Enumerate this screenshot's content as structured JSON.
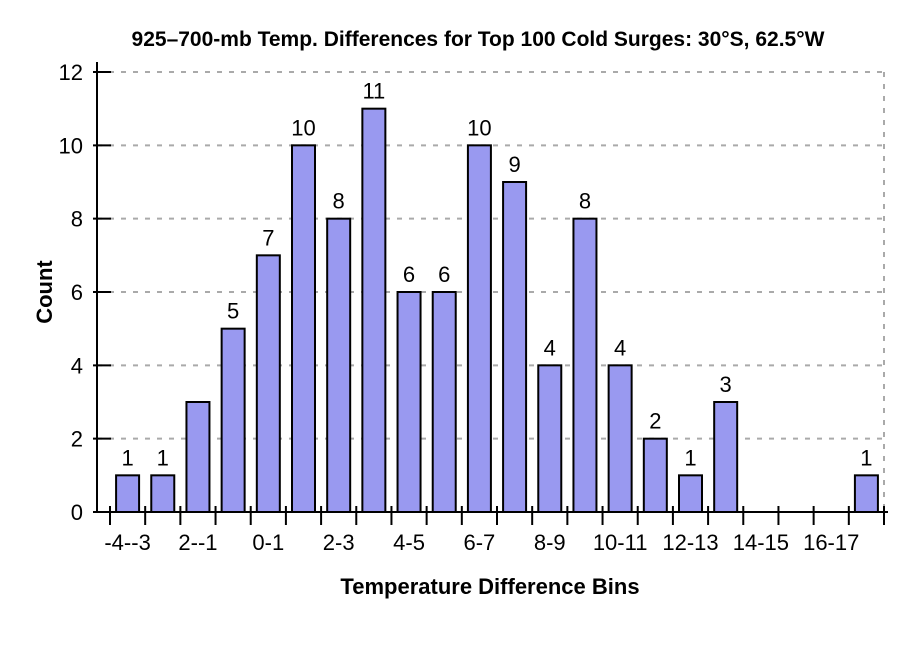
{
  "page": {
    "background": "#ffffff"
  },
  "chart_data": {
    "type": "bar",
    "title": "925–700-mb Temp. Differences for Top 100 Cold Surges: 30°S, 62.5°W",
    "xlabel": "Temperature Difference Bins",
    "ylabel": "Count",
    "categories": [
      "-4--3",
      "",
      "2--1",
      "",
      "0-1",
      "",
      "2-3",
      "",
      "4-5",
      "",
      "6-7",
      "",
      "8-9",
      "",
      "10-11",
      "",
      "12-13",
      "",
      "14-15",
      "",
      "16-17",
      ""
    ],
    "values": [
      1,
      1,
      3,
      5,
      7,
      10,
      8,
      11,
      6,
      6,
      10,
      9,
      4,
      8,
      4,
      2,
      1,
      3,
      0,
      0,
      0,
      1
    ],
    "bar_value_labels": [
      "1",
      "1",
      "",
      "5",
      "7",
      "10",
      "8",
      "11",
      "6",
      "6",
      "10",
      "9",
      "4",
      "8",
      "4",
      "2",
      "1",
      "3",
      "",
      "",
      "",
      "1"
    ],
    "yticks": [
      0,
      2,
      4,
      6,
      8,
      10,
      12
    ],
    "ylim": [
      0,
      12
    ],
    "grid": "dashed horizontal gridlines at y = 2,4,6,8,10,12 plus dashed vertical right border",
    "legend": "none",
    "colors": {
      "bar_fill": "#9999F0",
      "bar_stroke": "#000000",
      "gridline": "#AAAAAA",
      "axis": "#000000",
      "text": "#000000",
      "background": "#FFFFFF"
    }
  }
}
